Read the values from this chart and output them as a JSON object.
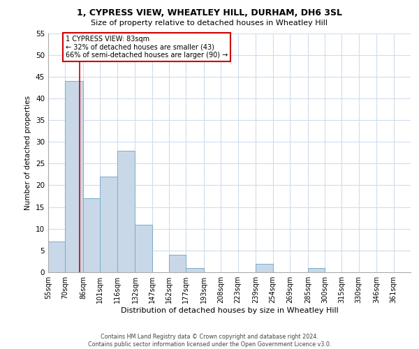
{
  "title1": "1, CYPRESS VIEW, WHEATLEY HILL, DURHAM, DH6 3SL",
  "title2": "Size of property relative to detached houses in Wheatley Hill",
  "xlabel": "Distribution of detached houses by size in Wheatley Hill",
  "ylabel": "Number of detached properties",
  "footnote": "Contains HM Land Registry data © Crown copyright and database right 2024.\nContains public sector information licensed under the Open Government Licence v3.0.",
  "bin_labels": [
    "55sqm",
    "70sqm",
    "86sqm",
    "101sqm",
    "116sqm",
    "132sqm",
    "147sqm",
    "162sqm",
    "177sqm",
    "193sqm",
    "208sqm",
    "223sqm",
    "239sqm",
    "254sqm",
    "269sqm",
    "285sqm",
    "300sqm",
    "315sqm",
    "330sqm",
    "346sqm",
    "361sqm"
  ],
  "values": [
    7,
    44,
    17,
    22,
    28,
    11,
    0,
    4,
    1,
    0,
    0,
    0,
    2,
    0,
    0,
    1,
    0,
    0,
    0,
    0,
    0
  ],
  "bar_color": "#c8d8e8",
  "bar_edge_color": "#7aaec8",
  "grid_color": "#d0dcec",
  "property_line_x": 83,
  "bin_edges": [
    55,
    70,
    86,
    101,
    116,
    132,
    147,
    162,
    177,
    193,
    208,
    223,
    239,
    254,
    269,
    285,
    300,
    315,
    330,
    346,
    361,
    376
  ],
  "annotation_title": "1 CYPRESS VIEW: 83sqm",
  "annotation_line1": "← 32% of detached houses are smaller (43)",
  "annotation_line2": "66% of semi-detached houses are larger (90) →",
  "annotation_box_color": "#ffffff",
  "annotation_box_edge_color": "#cc0000",
  "property_line_color": "#cc0000",
  "ylim": [
    0,
    55
  ],
  "yticks": [
    0,
    5,
    10,
    15,
    20,
    25,
    30,
    35,
    40,
    45,
    50,
    55
  ]
}
